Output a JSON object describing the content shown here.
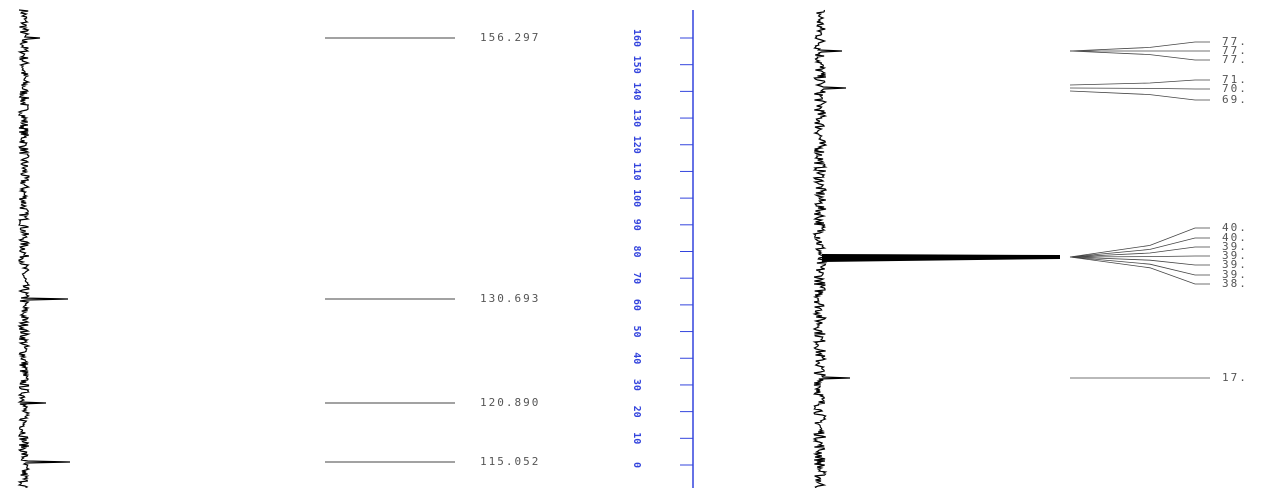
{
  "left_peaks": [
    "156.297",
    "130.693",
    "120.890",
    "115.052"
  ],
  "axis_labels": [
    "160",
    "150",
    "140",
    "130",
    "120",
    "110",
    "100",
    "90",
    "80",
    "70",
    "60",
    "50",
    "40",
    "30",
    "20",
    "10",
    "0"
  ],
  "right_peaks": [
    "77.",
    "77.",
    "77.",
    "71.",
    "70.",
    "69.",
    "40.",
    "40.",
    "39.",
    "39.",
    "39.",
    "39.",
    "38.",
    "17."
  ]
}
